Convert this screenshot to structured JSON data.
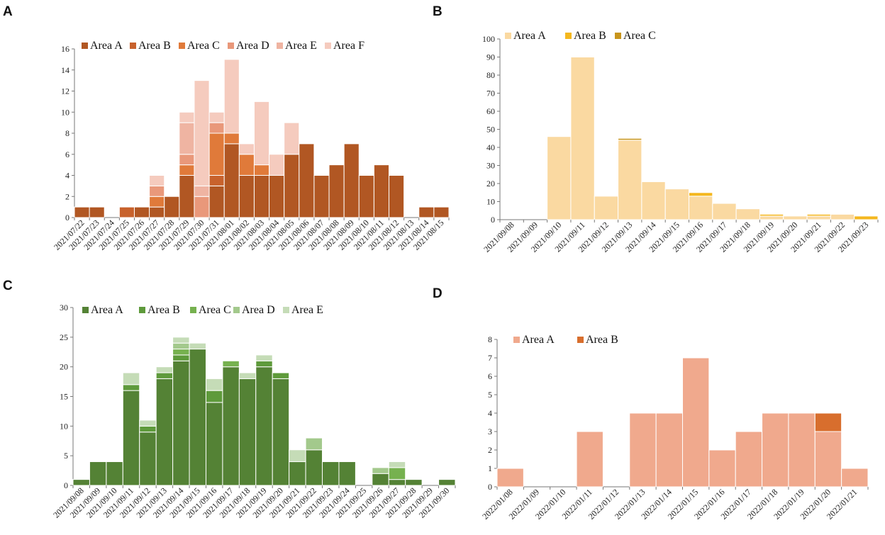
{
  "figure": {
    "panel_labels": [
      "A",
      "B",
      "C",
      "D"
    ]
  },
  "chart_data": [
    {
      "panel": "A",
      "type": "bar",
      "stacked": true,
      "title": "",
      "xlabel": "",
      "ylabel": "",
      "ylim": [
        0,
        16
      ],
      "yticks": [
        0,
        2,
        4,
        6,
        8,
        10,
        12,
        14,
        16
      ],
      "legend_position": "top",
      "categories": [
        "2021/07/22",
        "2021/07/23",
        "2021/07/24",
        "2021/07/25",
        "2021/07/26",
        "2021/07/27",
        "2021/07/28",
        "2021/07/29",
        "2021/07/30",
        "2021/07/31",
        "2021/08/01",
        "2021/08/02",
        "2021/08/03",
        "2021/08/04",
        "2021/08/05",
        "2021/08/06",
        "2021/08/07",
        "2021/08/08",
        "2021/08/09",
        "2021/08/10",
        "2021/08/11",
        "2021/08/12",
        "2021/08/13",
        "2021/08/14",
        "2021/08/15"
      ],
      "series": [
        {
          "name": "Area A",
          "color": "#b15723",
          "values": [
            1,
            1,
            0,
            0,
            1,
            1,
            2,
            4,
            0,
            3,
            7,
            4,
            4,
            4,
            6,
            7,
            4,
            5,
            7,
            4,
            5,
            4,
            0,
            1,
            1
          ]
        },
        {
          "name": "Area B",
          "color": "#c8622c",
          "values": [
            0,
            0,
            0,
            1,
            0,
            0,
            0,
            0,
            0,
            1,
            0,
            0,
            0,
            0,
            0,
            0,
            0,
            0,
            0,
            0,
            0,
            0,
            0,
            0,
            0
          ]
        },
        {
          "name": "Area C",
          "color": "#e07a3a",
          "values": [
            0,
            0,
            0,
            0,
            0,
            1,
            0,
            1,
            0,
            4,
            1,
            2,
            1,
            0,
            0,
            0,
            0,
            0,
            0,
            0,
            0,
            0,
            0,
            0,
            0
          ]
        },
        {
          "name": "Area D",
          "color": "#e9987a",
          "values": [
            0,
            0,
            0,
            0,
            0,
            1,
            0,
            1,
            2,
            1,
            0,
            0,
            0,
            0,
            0,
            0,
            0,
            0,
            0,
            0,
            0,
            0,
            0,
            0,
            0
          ]
        },
        {
          "name": "Area E",
          "color": "#efb4a2",
          "values": [
            0,
            0,
            0,
            0,
            0,
            0,
            0,
            3,
            1,
            0,
            0,
            0,
            0,
            0,
            0,
            0,
            0,
            0,
            0,
            0,
            0,
            0,
            0,
            0,
            0
          ]
        },
        {
          "name": "Area F",
          "color": "#f5cbbe",
          "values": [
            0,
            0,
            0,
            0,
            0,
            1,
            0,
            1,
            10,
            1,
            7,
            1,
            6,
            2,
            3,
            0,
            0,
            0,
            0,
            0,
            0,
            0,
            0,
            0,
            0
          ]
        }
      ]
    },
    {
      "panel": "B",
      "type": "bar",
      "stacked": true,
      "title": "",
      "xlabel": "",
      "ylabel": "",
      "ylim": [
        0,
        100
      ],
      "yticks": [
        0,
        10,
        20,
        30,
        40,
        50,
        60,
        70,
        80,
        90,
        100
      ],
      "legend_position": "top",
      "categories": [
        "2021/09/08",
        "2021/09/09",
        "2021/09/10",
        "2021/09/11",
        "2021/09/12",
        "2021/09/13",
        "2021/09/14",
        "2021/09/15",
        "2021/09/16",
        "2021/09/17",
        "2021/09/18",
        "2021/09/19",
        "2021/09/20",
        "2021/09/21",
        "2021/09/22",
        "2021/09/23"
      ],
      "series": [
        {
          "name": "Area A",
          "color": "#fad9a1",
          "values": [
            0,
            0,
            46,
            90,
            13,
            44,
            21,
            17,
            13,
            9,
            6,
            2,
            2,
            2,
            3,
            0
          ]
        },
        {
          "name": "Area B",
          "color": "#f4b71e",
          "values": [
            0,
            0,
            0,
            0,
            0,
            0,
            0,
            0,
            2,
            0,
            0,
            1,
            0,
            1,
            0,
            2
          ]
        },
        {
          "name": "Area C",
          "color": "#c8951c",
          "values": [
            0,
            0,
            0,
            0,
            0,
            1,
            0,
            0,
            0,
            0,
            0,
            0,
            0,
            0,
            0,
            0
          ]
        }
      ]
    },
    {
      "panel": "C",
      "type": "bar",
      "stacked": true,
      "title": "",
      "xlabel": "",
      "ylabel": "",
      "ylim": [
        0,
        30
      ],
      "yticks": [
        0,
        5,
        10,
        15,
        20,
        25,
        30
      ],
      "legend_position": "top",
      "categories": [
        "2021/09/08",
        "2021/09/09",
        "2021/09/10",
        "2021/09/11",
        "2021/09/12",
        "2021/09/13",
        "2021/09/14",
        "2021/09/15",
        "2021/09/16",
        "2021/09/17",
        "2021/09/18",
        "2021/09/19",
        "2021/09/20",
        "2021/09/21",
        "2021/09/22",
        "2021/09/23",
        "2021/09/24",
        "2021/09/25",
        "2021/09/26",
        "2021/09/27",
        "2021/09/28",
        "2021/09/29",
        "2021/09/30"
      ],
      "series": [
        {
          "name": "Area A",
          "color": "#548235",
          "values": [
            1,
            4,
            4,
            16,
            9,
            18,
            21,
            23,
            14,
            20,
            18,
            20,
            18,
            4,
            6,
            4,
            4,
            0,
            2,
            1,
            1,
            0,
            1
          ]
        },
        {
          "name": "Area B",
          "color": "#5e9a3b",
          "values": [
            0,
            0,
            0,
            1,
            1,
            1,
            1,
            0,
            2,
            0,
            0,
            1,
            1,
            0,
            0,
            0,
            0,
            0,
            0,
            0,
            0,
            0,
            0
          ]
        },
        {
          "name": "Area C",
          "color": "#76b14f",
          "values": [
            0,
            0,
            0,
            0,
            0,
            0,
            1,
            0,
            0,
            1,
            0,
            0,
            0,
            0,
            0,
            0,
            0,
            0,
            0,
            2,
            0,
            0,
            0
          ]
        },
        {
          "name": "Area D",
          "color": "#a3c98c",
          "values": [
            0,
            0,
            0,
            0,
            0,
            0,
            1,
            0,
            0,
            0,
            0,
            0,
            0,
            0,
            2,
            0,
            0,
            0,
            1,
            0,
            0,
            0,
            0
          ]
        },
        {
          "name": "Area E",
          "color": "#c5dcb7",
          "values": [
            0,
            0,
            0,
            2,
            1,
            1,
            1,
            1,
            2,
            0,
            1,
            1,
            0,
            2,
            0,
            0,
            0,
            0,
            0,
            1,
            0,
            0,
            0
          ]
        }
      ]
    },
    {
      "panel": "D",
      "type": "bar",
      "stacked": true,
      "title": "",
      "xlabel": "",
      "ylabel": "",
      "ylim": [
        0,
        8
      ],
      "yticks": [
        0,
        1,
        2,
        3,
        4,
        5,
        6,
        7,
        8
      ],
      "legend_position": "top",
      "categories": [
        "2022/01/08",
        "2022/01/09",
        "2022/01/10",
        "2022/01/11",
        "2022/01/12",
        "2022/01/13",
        "2022/01/14",
        "2022/01/15",
        "2022/01/16",
        "2022/01/17",
        "2022/01/18",
        "2022/01/19",
        "2022/01/20",
        "2022/01/21"
      ],
      "series": [
        {
          "name": "Area A",
          "color": "#f0a98d",
          "values": [
            1,
            0,
            0,
            3,
            0,
            4,
            4,
            7,
            2,
            3,
            4,
            4,
            3,
            1
          ]
        },
        {
          "name": "Area B",
          "color": "#d86e2d",
          "values": [
            0,
            0,
            0,
            0,
            0,
            0,
            0,
            0,
            0,
            0,
            0,
            0,
            1,
            0
          ]
        }
      ]
    }
  ]
}
